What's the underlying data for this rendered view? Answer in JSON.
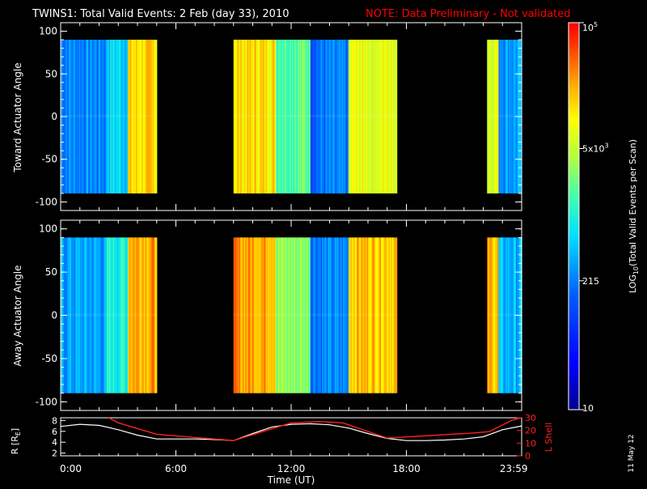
{
  "title": "TWINS1: Total Valid Events:  2 Feb (day  33), 2010",
  "note": "NOTE: Data Preliminary - Not validated",
  "side_date": "11 May 12",
  "colors": {
    "background": "#000000",
    "foreground": "#ffffff",
    "note": "#ff0000",
    "lshell": "#ff2020"
  },
  "chart_data": [
    {
      "type": "heatmap",
      "panel": "toward",
      "ylabel": "Toward Actuator Angle",
      "ylim": [
        -110,
        110
      ],
      "yticks": [
        "100",
        "50",
        "0",
        "-50",
        "-100"
      ],
      "ytick_values": [
        100,
        50,
        0,
        -50,
        -100
      ],
      "angle_range": [
        -90,
        90
      ],
      "data_intervals_h": [
        [
          0.0,
          5.0
        ],
        [
          9.0,
          17.5
        ],
        [
          22.2,
          24.0
        ]
      ],
      "dominant_log_levels": [
        {
          "t_start": 0.0,
          "t_end": 2.4,
          "level": 0.35
        },
        {
          "t_start": 2.4,
          "t_end": 3.5,
          "level": 0.45
        },
        {
          "t_start": 3.5,
          "t_end": 5.0,
          "level": 0.78
        },
        {
          "t_start": 9.0,
          "t_end": 11.2,
          "level": 0.78
        },
        {
          "t_start": 11.2,
          "t_end": 13.0,
          "level": 0.58
        },
        {
          "t_start": 13.0,
          "t_end": 15.0,
          "level": 0.32
        },
        {
          "t_start": 15.0,
          "t_end": 17.5,
          "level": 0.72
        },
        {
          "t_start": 22.2,
          "t_end": 22.8,
          "level": 0.72
        },
        {
          "t_start": 22.8,
          "t_end": 24.0,
          "level": 0.38
        }
      ]
    },
    {
      "type": "heatmap",
      "panel": "away",
      "ylabel": "Away Actuator Angle",
      "ylim": [
        -110,
        110
      ],
      "yticks": [
        "100",
        "50",
        "0",
        "-50",
        "-100"
      ],
      "ytick_values": [
        100,
        50,
        0,
        -50,
        -100
      ],
      "angle_range": [
        -90,
        90
      ],
      "data_intervals_h": [
        [
          0.0,
          5.0
        ],
        [
          9.0,
          17.5
        ],
        [
          22.2,
          24.0
        ]
      ],
      "dominant_log_levels": [
        {
          "t_start": 0.0,
          "t_end": 2.4,
          "level": 0.38
        },
        {
          "t_start": 2.4,
          "t_end": 3.5,
          "level": 0.5
        },
        {
          "t_start": 3.5,
          "t_end": 5.0,
          "level": 0.85
        },
        {
          "t_start": 9.0,
          "t_end": 11.2,
          "level": 0.85
        },
        {
          "t_start": 11.2,
          "t_end": 13.0,
          "level": 0.62
        },
        {
          "t_start": 13.0,
          "t_end": 15.0,
          "level": 0.34
        },
        {
          "t_start": 15.0,
          "t_end": 17.5,
          "level": 0.82
        },
        {
          "t_start": 22.2,
          "t_end": 22.8,
          "level": 0.82
        },
        {
          "t_start": 22.8,
          "t_end": 24.0,
          "level": 0.4
        }
      ]
    },
    {
      "type": "line",
      "panel": "orbit",
      "xlabel": "Time (UT)",
      "xlim": [
        0,
        24
      ],
      "xticks": [
        "0:00",
        "6:00",
        "12:00",
        "18:00",
        "23:59"
      ],
      "xtick_values": [
        0,
        6,
        12,
        18,
        23.98
      ],
      "ylabel_left": "R [R",
      "ylabel_left_sub": "E",
      "ylabel_left_end": "]",
      "ylim_left": [
        1.5,
        8.5
      ],
      "yticks_left": [
        "8",
        "6",
        "4",
        "2"
      ],
      "ytick_values_left": [
        8,
        6,
        4,
        2
      ],
      "ylabel_right": "L Shell",
      "ylim_right": [
        0,
        30
      ],
      "yticks_right": [
        "30",
        "20",
        "10",
        "0"
      ],
      "ytick_values_right": [
        30,
        20,
        10,
        0
      ],
      "series": [
        {
          "name": "R",
          "axis": "left",
          "color": "#ffffff",
          "x": [
            0,
            1,
            2,
            3,
            4,
            5,
            6,
            7,
            8,
            9,
            10,
            11,
            12,
            13,
            14,
            15,
            16,
            17,
            18,
            19,
            20,
            21,
            22,
            23,
            24
          ],
          "y": [
            6.9,
            7.3,
            7.1,
            6.3,
            5.3,
            4.6,
            4.6,
            4.6,
            4.5,
            4.3,
            5.6,
            6.8,
            7.3,
            7.4,
            7.2,
            6.6,
            5.6,
            4.7,
            4.3,
            4.3,
            4.4,
            4.6,
            5.0,
            6.3,
            7.0
          ]
        },
        {
          "name": "L Shell",
          "axis": "right",
          "color": "#ff2020",
          "x": [
            2.5,
            3.0,
            5.0,
            9.0,
            12.0,
            13.5,
            14.7,
            17.0,
            21.5,
            22.3,
            23.5,
            24.0
          ],
          "y": [
            30,
            26,
            17,
            12,
            26,
            27,
            26,
            14,
            18,
            19,
            28,
            30
          ]
        }
      ]
    }
  ],
  "colorbar": {
    "label": "LOG",
    "label_sub": "10",
    "label_rest": "(Total Valid Events per Scan)",
    "ticks": [
      {
        "base": "10",
        "exp": "5",
        "value": 100000
      },
      {
        "base": "5x10",
        "exp": "3",
        "value": 5000
      },
      {
        "base": "215",
        "exp": "",
        "value": 215
      },
      {
        "base": "10",
        "exp": "",
        "value": 10
      }
    ]
  }
}
